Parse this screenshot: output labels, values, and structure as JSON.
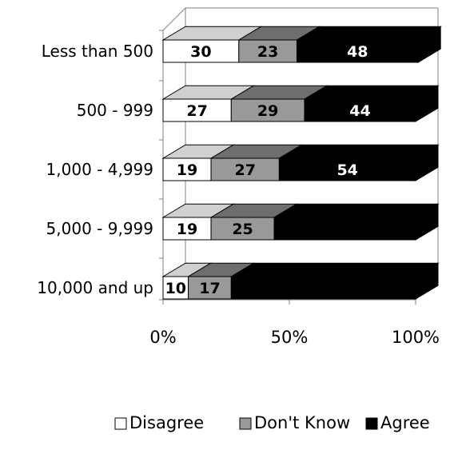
{
  "chart_data": {
    "type": "bar",
    "orientation": "horizontal",
    "stacked": "percent",
    "style": "3d",
    "categories": [
      "Less than 500",
      "500 - 999",
      "1,000 - 4,999",
      "5,000 - 9,999",
      "10,000 and up"
    ],
    "series": [
      {
        "name": "Disagree",
        "values": [
          30,
          27,
          19,
          19,
          10
        ],
        "color": "#ffffff",
        "side_color": "#d0d0d0",
        "label_color": "#000000"
      },
      {
        "name": "Don't Know",
        "values": [
          23,
          29,
          27,
          25,
          17
        ],
        "color": "#999999",
        "side_color": "#6e6e6e",
        "label_color": "#000000"
      },
      {
        "name": "Agree",
        "values": [
          48,
          44,
          54,
          56,
          73
        ],
        "color": "#000000",
        "side_color": "#000000",
        "label_color": "#ffffff"
      }
    ],
    "data_labels": [
      [
        "30",
        "23",
        "48"
      ],
      [
        "27",
        "29",
        "44"
      ],
      [
        "19",
        "27",
        "54"
      ],
      [
        "19",
        "25",
        ""
      ],
      [
        "10",
        "17",
        ""
      ]
    ],
    "x_ticks": [
      "0%",
      "50%",
      "100%"
    ],
    "xlim": [
      0,
      100
    ],
    "grid": false,
    "legend_position": "bottom",
    "title": "",
    "xlabel": "",
    "ylabel": ""
  }
}
